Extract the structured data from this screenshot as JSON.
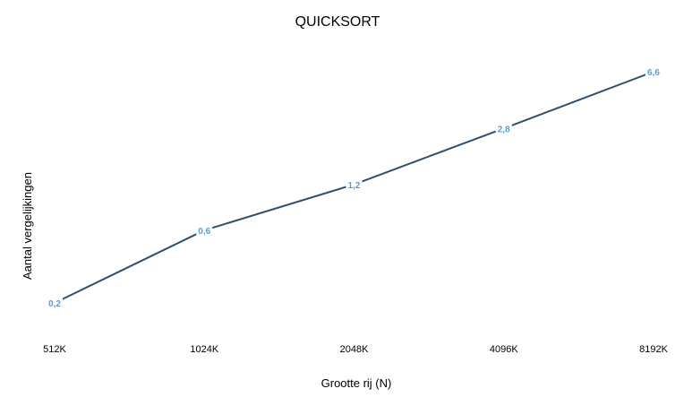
{
  "chart_data": {
    "type": "line",
    "title": "QUICKSORT",
    "xlabel": "Grootte rij (N)",
    "ylabel": "Aantal vergelijkingen",
    "categories": [
      "512K",
      "1024K",
      "2048K",
      "4096K",
      "8192K"
    ],
    "series": [
      {
        "values": [
          0.2,
          0.6,
          1.2,
          2.8,
          6.6
        ],
        "labels": [
          "0,2",
          "0,6",
          "1,2",
          "2,8",
          "6,6"
        ]
      }
    ],
    "scale": "log",
    "grid": false,
    "legend": "none",
    "colors": {
      "line": "#2E4F6F",
      "data_label": "#5B9BD5"
    }
  }
}
